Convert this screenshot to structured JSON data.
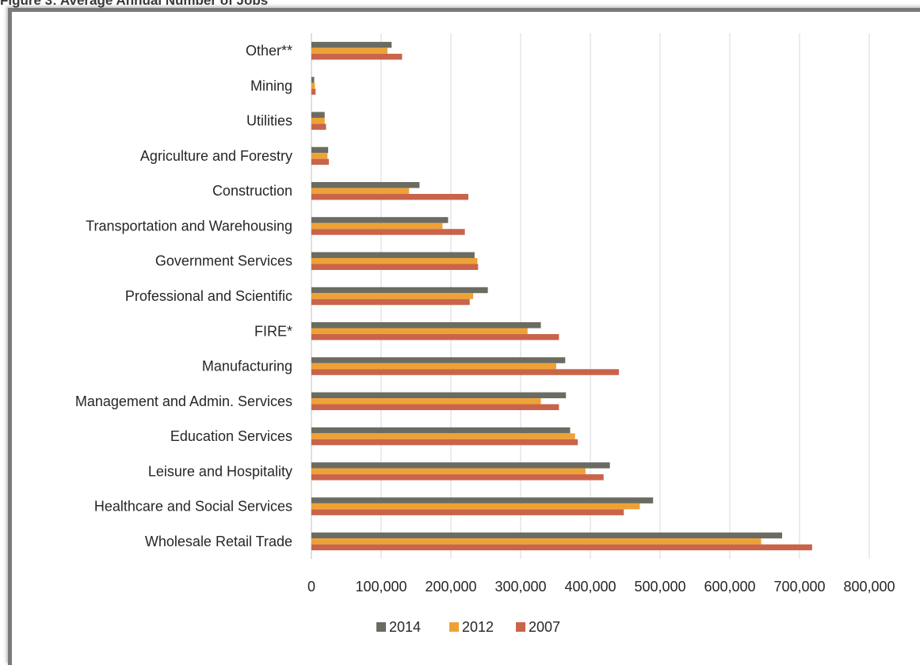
{
  "caption_fragment": "Figure 3: Average Annual Number of Jobs",
  "chart_data": {
    "type": "bar",
    "orientation": "horizontal",
    "categories": [
      "Wholesale Retail Trade",
      "Healthcare and Social Services",
      "Leisure and Hospitality",
      "Education Services",
      "Management and Admin. Services",
      "Manufacturing",
      "FIRE*",
      "Professional and Scientific",
      "Government Services",
      "Transportation and Warehousing",
      "Construction",
      "Agriculture and Forestry",
      "Utilities",
      "Mining",
      "Other**"
    ],
    "series": [
      {
        "name": "2014",
        "color": "#6b6b61",
        "values": [
          675000,
          490000,
          428000,
          371000,
          365000,
          364000,
          329000,
          253000,
          234000,
          196000,
          155000,
          24000,
          19000,
          4000,
          115000
        ]
      },
      {
        "name": "2012",
        "color": "#eea236",
        "values": [
          645000,
          471000,
          393000,
          378000,
          329000,
          351000,
          310000,
          232000,
          238000,
          188000,
          140000,
          23000,
          19000,
          5000,
          109000
        ]
      },
      {
        "name": "2007",
        "color": "#c9644a",
        "values": [
          718000,
          448000,
          419000,
          382000,
          355000,
          441000,
          355000,
          227000,
          239000,
          220000,
          225000,
          25000,
          21000,
          6000,
          130000
        ]
      }
    ],
    "xlim": [
      0,
      800000
    ],
    "xticks": [
      "0",
      "100,000",
      "200,000",
      "300,000",
      "400,000",
      "500,000",
      "600,000",
      "700,000",
      "800,000"
    ],
    "grid": true,
    "legend_position": "bottom",
    "title": "",
    "xlabel": "",
    "ylabel": ""
  }
}
